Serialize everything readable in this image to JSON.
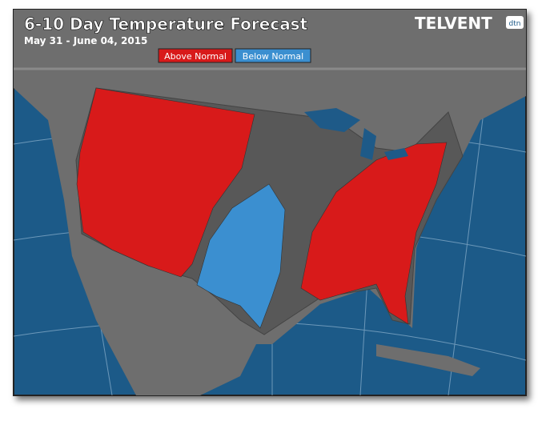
{
  "header": {
    "title": "6-10 Day Temperature Forecast",
    "subtitle": "May 31 - June 04, 2015",
    "logo": "TELVENT",
    "logo_badge": "dtn"
  },
  "legend": [
    {
      "label": "Above Normal",
      "color": "#d81a1a"
    },
    {
      "label": "Below Normal",
      "color": "#3b8fd0"
    }
  ]
}
